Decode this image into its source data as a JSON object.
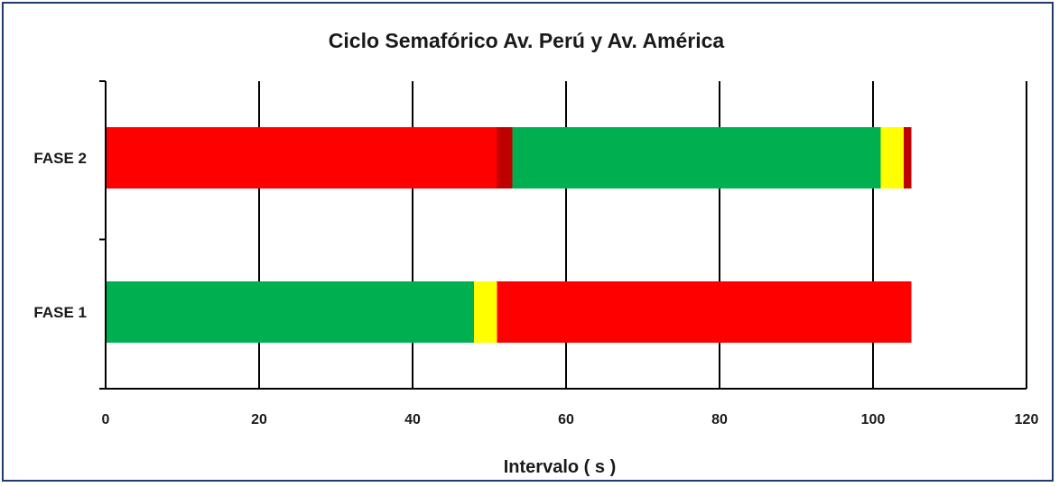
{
  "chart_data": {
    "type": "bar",
    "orientation": "horizontal",
    "stacked": true,
    "title": "Ciclo Semafórico  Av. Perú y Av. América",
    "xlabel": "Intervalo ( s )",
    "ylabel": "",
    "xlim": [
      0,
      120
    ],
    "xticks": [
      "0",
      "20",
      "40",
      "60",
      "80",
      "100",
      "120"
    ],
    "grid": "vertical",
    "legend": "none",
    "categories": [
      "FASE 2",
      "FASE 1"
    ],
    "rows": [
      {
        "category": "FASE 2",
        "segments": [
          {
            "start": 0,
            "end": 51,
            "color": "#ff0000"
          },
          {
            "start": 51,
            "end": 53,
            "color": "#c00000"
          },
          {
            "start": 53,
            "end": 101,
            "color": "#00b050"
          },
          {
            "start": 101,
            "end": 104,
            "color": "#ffff00"
          },
          {
            "start": 104,
            "end": 105,
            "color": "#c00000"
          }
        ]
      },
      {
        "category": "FASE 1",
        "segments": [
          {
            "start": 0,
            "end": 48,
            "color": "#00b050"
          },
          {
            "start": 48,
            "end": 51,
            "color": "#ffff00"
          },
          {
            "start": 51,
            "end": 105,
            "color": "#ff0000"
          }
        ]
      }
    ]
  }
}
